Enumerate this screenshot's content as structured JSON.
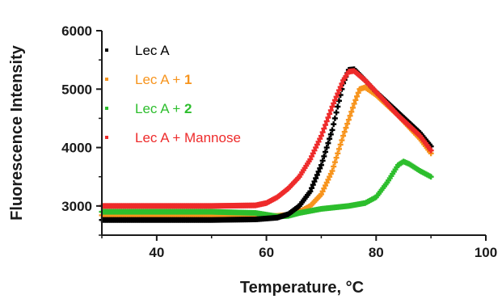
{
  "chart_data": {
    "type": "scatter",
    "title": "",
    "xlabel": "Temperature, °C",
    "ylabel": "Fluorescence Intensity",
    "xlim": [
      30,
      100
    ],
    "ylim": [
      2500,
      6000
    ],
    "xticks": [
      "40",
      "60",
      "80",
      "100"
    ],
    "yticks": [
      "3000",
      "4000",
      "5000",
      "6000"
    ],
    "xtick_values": [
      40,
      60,
      80,
      100
    ],
    "ytick_values": [
      3000,
      4000,
      5000,
      6000
    ],
    "grid": false,
    "legend_position": "top-left",
    "series": [
      {
        "name": "Lec A",
        "name_prefix": "Lec A",
        "name_suffix": "",
        "color": "#000000",
        "points": [
          [
            30,
            2760
          ],
          [
            40,
            2760
          ],
          [
            50,
            2760
          ],
          [
            58,
            2770
          ],
          [
            62,
            2800
          ],
          [
            64,
            2860
          ],
          [
            66,
            3000
          ],
          [
            68,
            3250
          ],
          [
            70,
            3700
          ],
          [
            72,
            4300
          ],
          [
            73,
            4700
          ],
          [
            74,
            5100
          ],
          [
            75,
            5330
          ],
          [
            76,
            5340
          ],
          [
            78,
            5150
          ],
          [
            80,
            4950
          ],
          [
            84,
            4600
          ],
          [
            88,
            4250
          ],
          [
            90,
            4020
          ]
        ]
      },
      {
        "name": "Lec A + 1",
        "name_prefix": "Lec A + ",
        "name_suffix": "1",
        "color": "#F7941D",
        "points": [
          [
            30,
            2840
          ],
          [
            40,
            2840
          ],
          [
            50,
            2840
          ],
          [
            58,
            2830
          ],
          [
            62,
            2830
          ],
          [
            64,
            2850
          ],
          [
            66,
            2900
          ],
          [
            68,
            3000
          ],
          [
            70,
            3200
          ],
          [
            72,
            3600
          ],
          [
            74,
            4200
          ],
          [
            76,
            4750
          ],
          [
            77,
            5000
          ],
          [
            78,
            5030
          ],
          [
            80,
            4900
          ],
          [
            84,
            4550
          ],
          [
            88,
            4150
          ],
          [
            90,
            3900
          ]
        ]
      },
      {
        "name": "Lec A + 2",
        "name_prefix": "Lec A + ",
        "name_suffix": "2",
        "color": "#2DBE2D",
        "points": [
          [
            30,
            2900
          ],
          [
            40,
            2900
          ],
          [
            50,
            2900
          ],
          [
            58,
            2880
          ],
          [
            60,
            2850
          ],
          [
            62,
            2820
          ],
          [
            64,
            2830
          ],
          [
            66,
            2880
          ],
          [
            70,
            2950
          ],
          [
            75,
            3000
          ],
          [
            78,
            3050
          ],
          [
            80,
            3150
          ],
          [
            82,
            3400
          ],
          [
            84,
            3700
          ],
          [
            85,
            3760
          ],
          [
            86,
            3720
          ],
          [
            88,
            3600
          ],
          [
            90,
            3500
          ]
        ]
      },
      {
        "name": "Lec A + Mannose",
        "name_prefix": "Lec A + Mannose",
        "name_suffix": "",
        "color": "#EE2B2B",
        "points": [
          [
            30,
            3000
          ],
          [
            40,
            3000
          ],
          [
            50,
            3000
          ],
          [
            58,
            3010
          ],
          [
            60,
            3050
          ],
          [
            62,
            3150
          ],
          [
            64,
            3300
          ],
          [
            66,
            3500
          ],
          [
            68,
            3800
          ],
          [
            70,
            4200
          ],
          [
            72,
            4700
          ],
          [
            74,
            5150
          ],
          [
            75,
            5300
          ],
          [
            76,
            5310
          ],
          [
            78,
            5150
          ],
          [
            80,
            4950
          ],
          [
            84,
            4550
          ],
          [
            88,
            4200
          ],
          [
            90,
            3950
          ]
        ]
      }
    ]
  }
}
